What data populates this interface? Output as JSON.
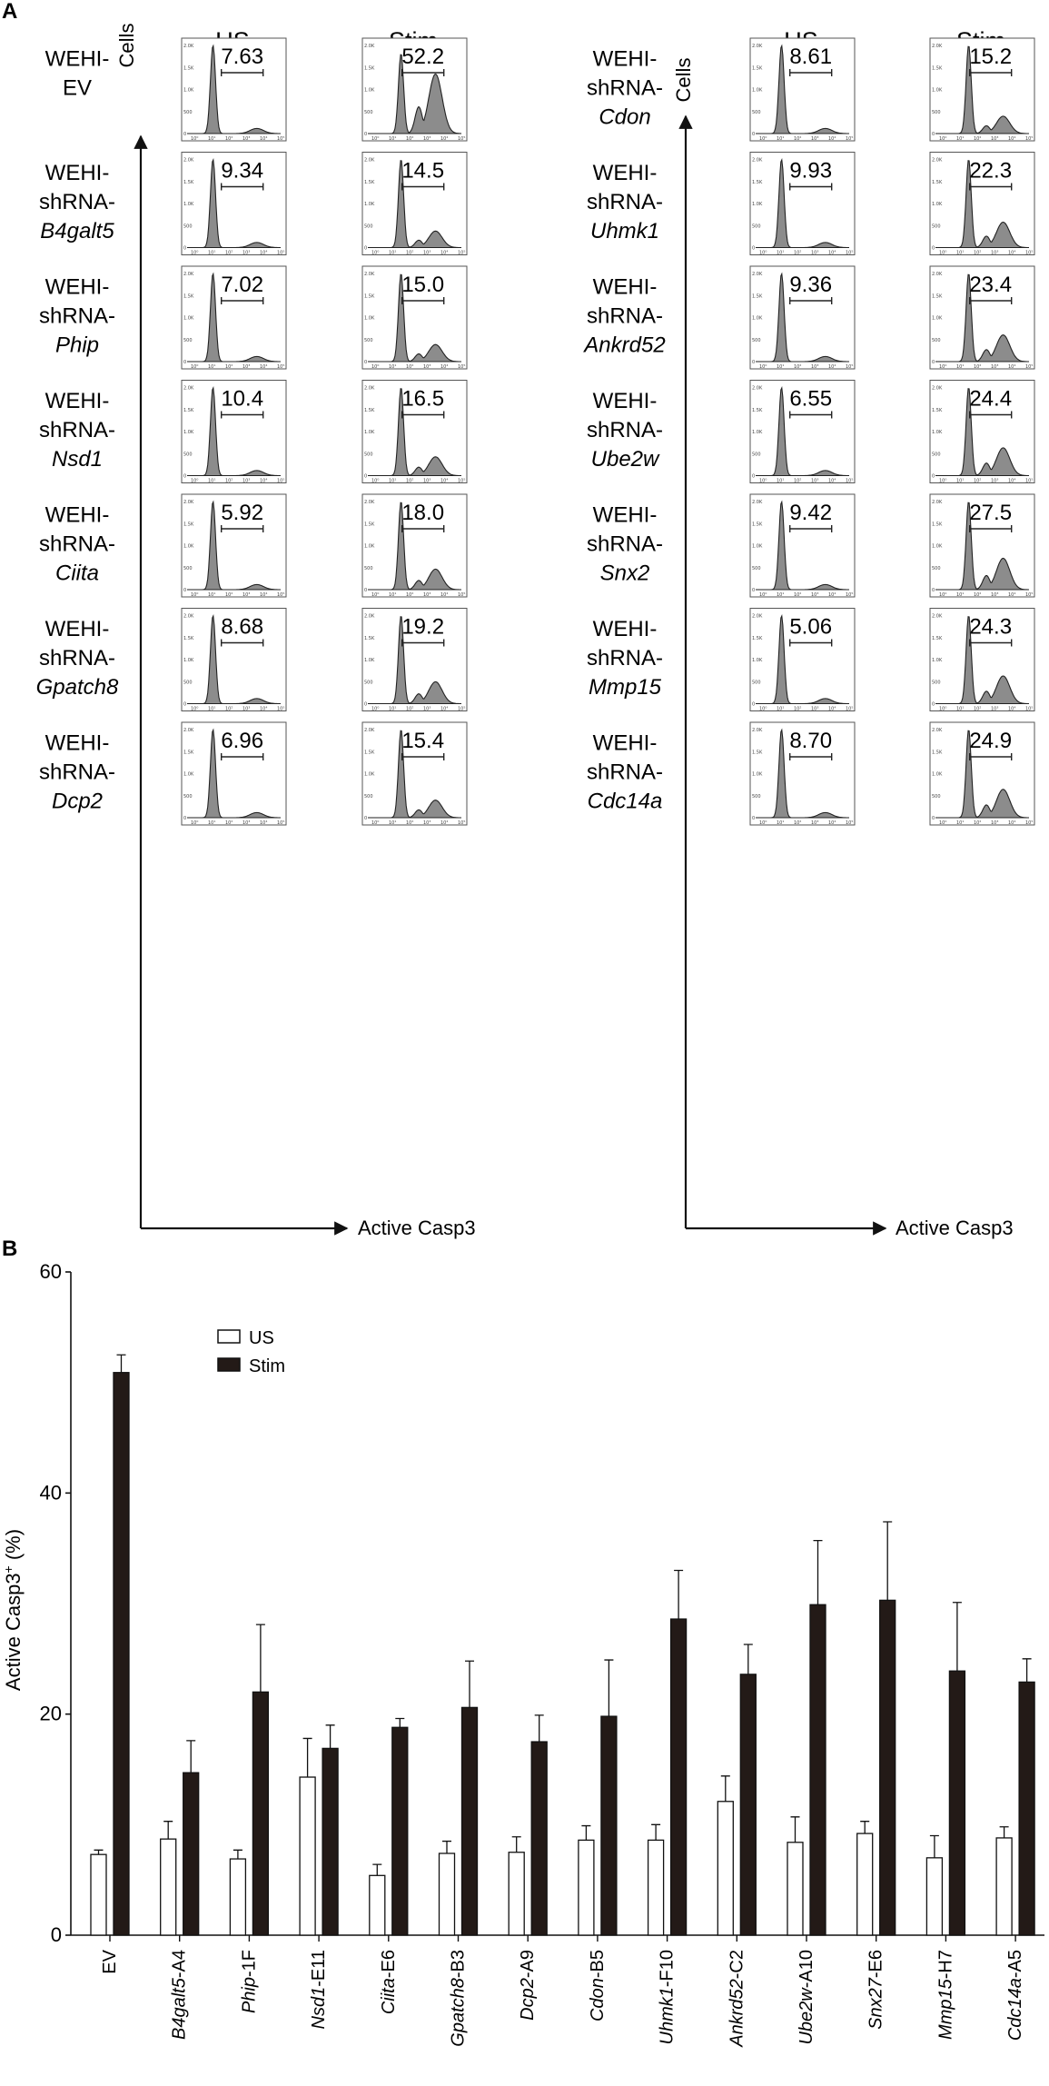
{
  "panel_a": {
    "letter": "A",
    "column_headers": [
      "US",
      "Stim"
    ],
    "y_axis_label": "Cells",
    "x_axis_label": "Active Casp3",
    "histogram_y_ticks": [
      "0",
      "500",
      "1.0K",
      "1.5K",
      "2.0K"
    ],
    "histogram_x_ticks": [
      "10⁰",
      "10¹",
      "10²",
      "10³",
      "10⁴",
      "10⁵"
    ],
    "left_group": [
      {
        "line1": "WEHI-",
        "line2": "EV",
        "gene": "",
        "us": "7.63",
        "stim": "52.2"
      },
      {
        "line1": "WEHI-",
        "line2": "shRNA-",
        "gene": "B4galt5",
        "us": "9.34",
        "stim": "14.5"
      },
      {
        "line1": "WEHI-",
        "line2": "shRNA-",
        "gene": "Phip",
        "us": "7.02",
        "stim": "15.0"
      },
      {
        "line1": "WEHI-",
        "line2": "shRNA-",
        "gene": "Nsd1",
        "us": "10.4",
        "stim": "16.5"
      },
      {
        "line1": "WEHI-",
        "line2": "shRNA-",
        "gene": "Ciita",
        "us": "5.92",
        "stim": "18.0"
      },
      {
        "line1": "WEHI-",
        "line2": "shRNA-",
        "gene": "Gpatch8",
        "us": "8.68",
        "stim": "19.2"
      },
      {
        "line1": "WEHI-",
        "line2": "shRNA-",
        "gene": "Dcp2",
        "us": "6.96",
        "stim": "15.4"
      }
    ],
    "right_group": [
      {
        "line1": "WEHI-",
        "line2": "shRNA-",
        "gene": "Cdon",
        "us": "8.61",
        "stim": "15.2"
      },
      {
        "line1": "WEHI-",
        "line2": "shRNA-",
        "gene": "Uhmk1",
        "us": "9.93",
        "stim": "22.3"
      },
      {
        "line1": "WEHI-",
        "line2": "shRNA-",
        "gene": "Ankrd52",
        "us": "9.36",
        "stim": "23.4"
      },
      {
        "line1": "WEHI-",
        "line2": "shRNA-",
        "gene": "Ube2w",
        "us": "6.55",
        "stim": "24.4"
      },
      {
        "line1": "WEHI-",
        "line2": "shRNA-",
        "gene": "Snx2",
        "us": "9.42",
        "stim": "27.5"
      },
      {
        "line1": "WEHI-",
        "line2": "shRNA-",
        "gene": "Mmp15",
        "us": "5.06",
        "stim": "24.3"
      },
      {
        "line1": "WEHI-",
        "line2": "shRNA-",
        "gene": "Cdc14a",
        "us": "8.70",
        "stim": "24.9"
      }
    ]
  },
  "chart_data": {
    "type": "bar",
    "panel_letter": "B",
    "title": "",
    "xlabel": "",
    "ylabel_main": "Active Casp3",
    "ylabel_sup": "+",
    "ylabel_suffix": " (%)",
    "ylim": [
      0,
      60
    ],
    "yticks": [
      0,
      20,
      40,
      60
    ],
    "legend": [
      "US",
      "Stim"
    ],
    "legend_position": "top-left",
    "categories": [
      {
        "gene": "EV",
        "suffix": ""
      },
      {
        "gene": "B4galt5",
        "suffix": "-A4"
      },
      {
        "gene": "Phip",
        "suffix": "-1F"
      },
      {
        "gene": "Nsd1",
        "suffix": "-E11"
      },
      {
        "gene": "Ciita",
        "suffix": "-E6"
      },
      {
        "gene": "Gpatch8",
        "suffix": "-B3"
      },
      {
        "gene": "Dcp2",
        "suffix": "-A9"
      },
      {
        "gene": "Cdon",
        "suffix": "-B5"
      },
      {
        "gene": "Uhmk1",
        "suffix": "-F10"
      },
      {
        "gene": "Ankrd52",
        "suffix": "-C2"
      },
      {
        "gene": "Ube2w",
        "suffix": "-A10"
      },
      {
        "gene": "Snx27",
        "suffix": "-E6"
      },
      {
        "gene": "Mmp15",
        "suffix": "-H7"
      },
      {
        "gene": "Cdc14a",
        "suffix": "-A5"
      }
    ],
    "series": [
      {
        "name": "US",
        "color": "#ffffff",
        "values": [
          7.3,
          8.7,
          6.9,
          14.3,
          5.4,
          7.4,
          7.5,
          8.6,
          8.6,
          12.1,
          8.4,
          9.2,
          7.0,
          8.8
        ],
        "errors": [
          0.4,
          1.6,
          0.8,
          3.5,
          1.0,
          1.1,
          1.4,
          1.3,
          1.4,
          2.3,
          2.3,
          1.1,
          2.0,
          1.0
        ]
      },
      {
        "name": "Stim",
        "color": "#231a17",
        "values": [
          50.9,
          14.7,
          22.0,
          16.9,
          18.8,
          20.6,
          17.5,
          19.8,
          28.6,
          23.6,
          29.9,
          30.3,
          23.9,
          22.9
        ],
        "errors": [
          1.6,
          2.9,
          6.1,
          2.1,
          0.8,
          4.2,
          2.4,
          5.1,
          4.4,
          2.7,
          5.8,
          7.1,
          6.2,
          2.1
        ]
      }
    ]
  }
}
